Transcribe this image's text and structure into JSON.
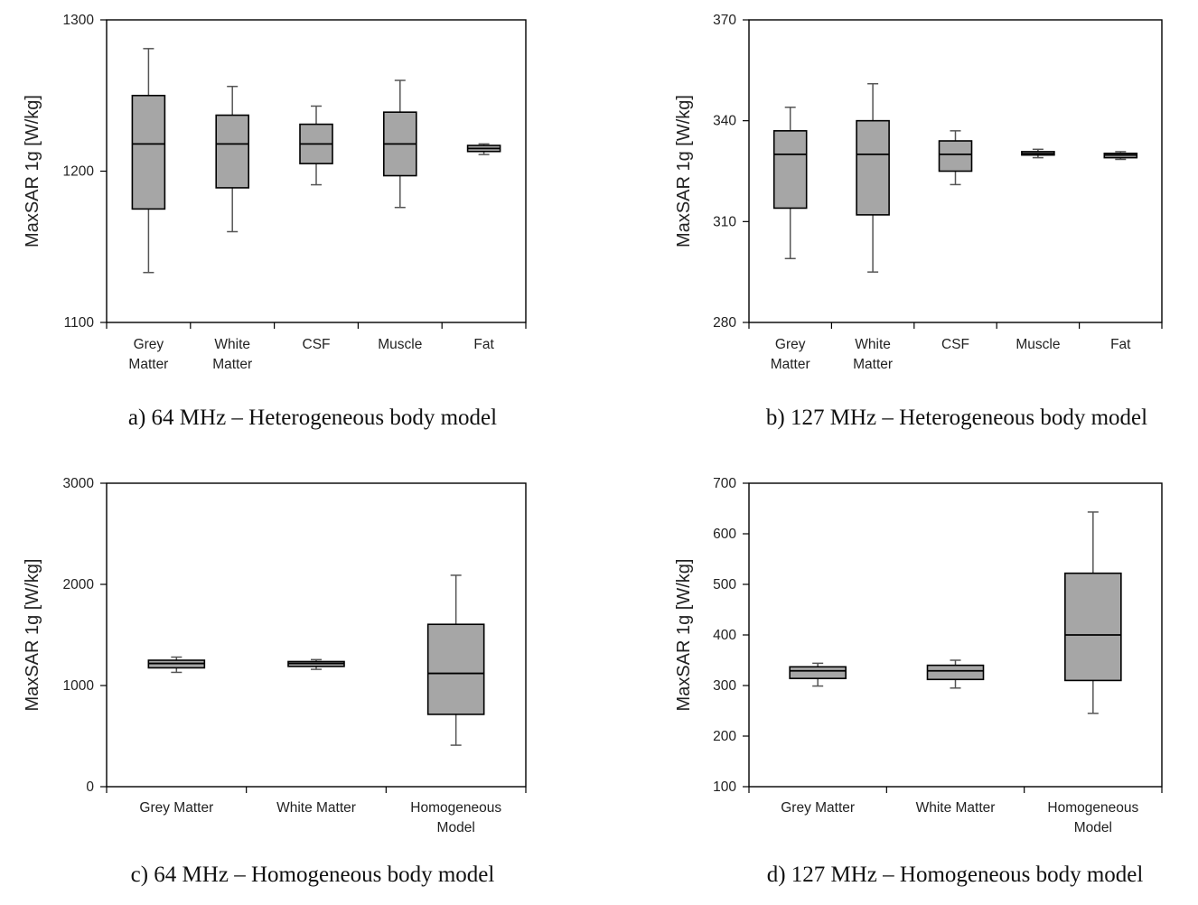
{
  "chart_data": [
    {
      "type": "box",
      "caption": "a) 64 MHz – Heterogeneous body model",
      "ylabel": "MaxSAR 1g [W/kg]",
      "ylim": [
        1100,
        1300
      ],
      "yticks": [
        "1100",
        "1200",
        "1300"
      ],
      "categories": [
        [
          "Grey",
          "Matter"
        ],
        [
          "White",
          "Matter"
        ],
        [
          "CSF"
        ],
        [
          "Muscle"
        ],
        [
          "Fat"
        ]
      ],
      "boxes": [
        {
          "min": 1133,
          "q1": 1175,
          "median": 1218,
          "q3": 1250,
          "max": 1281
        },
        {
          "min": 1160,
          "q1": 1189,
          "median": 1218,
          "q3": 1237,
          "max": 1256
        },
        {
          "min": 1191,
          "q1": 1205,
          "median": 1218,
          "q3": 1231,
          "max": 1243
        },
        {
          "min": 1176,
          "q1": 1197,
          "median": 1218,
          "q3": 1239,
          "max": 1260
        },
        {
          "min": 1211,
          "q1": 1213,
          "median": 1215,
          "q3": 1217,
          "max": 1218
        }
      ]
    },
    {
      "type": "box",
      "caption": "b) 127 MHz – Heterogeneous body model",
      "ylabel": "MaxSAR 1g [W/kg]",
      "ylim": [
        280,
        370
      ],
      "yticks": [
        "280",
        "310",
        "340",
        "370"
      ],
      "categories": [
        [
          "Grey",
          "Matter"
        ],
        [
          "White",
          "Matter"
        ],
        [
          "CSF"
        ],
        [
          "Muscle"
        ],
        [
          "Fat"
        ]
      ],
      "boxes": [
        {
          "min": 299,
          "q1": 314,
          "median": 330,
          "q3": 337,
          "max": 344
        },
        {
          "min": 295,
          "q1": 312,
          "median": 330,
          "q3": 340,
          "max": 351
        },
        {
          "min": 321,
          "q1": 325,
          "median": 330,
          "q3": 334,
          "max": 337
        },
        {
          "min": 329,
          "q1": 329.8,
          "median": 330.2,
          "q3": 330.8,
          "max": 331.5
        },
        {
          "min": 328.5,
          "q1": 329,
          "median": 329.8,
          "q3": 330.3,
          "max": 330.8
        }
      ]
    },
    {
      "type": "box",
      "caption": "c) 64 MHz – Homogeneous body model",
      "ylabel": "MaxSAR 1g [W/kg]",
      "ylim": [
        0,
        3000
      ],
      "yticks": [
        "0",
        "1000",
        "2000",
        "3000"
      ],
      "categories": [
        [
          "Grey Matter"
        ],
        [
          "White Matter"
        ],
        [
          "Homogeneous",
          "Model"
        ]
      ],
      "boxes": [
        {
          "min": 1130,
          "q1": 1175,
          "median": 1218,
          "q3": 1250,
          "max": 1281
        },
        {
          "min": 1160,
          "q1": 1189,
          "median": 1218,
          "q3": 1237,
          "max": 1256
        },
        {
          "min": 410,
          "q1": 715,
          "median": 1120,
          "q3": 1605,
          "max": 2090
        }
      ]
    },
    {
      "type": "box",
      "caption": "d) 127 MHz – Homogeneous body model",
      "ylabel": "MaxSAR 1g [W/kg]",
      "ylim": [
        100,
        700
      ],
      "yticks": [
        "100",
        "200",
        "300",
        "400",
        "500",
        "600",
        "700"
      ],
      "categories": [
        [
          "Grey Matter"
        ],
        [
          "White Matter"
        ],
        [
          "Homogeneous",
          "Model"
        ]
      ],
      "boxes": [
        {
          "min": 299,
          "q1": 314,
          "median": 329,
          "q3": 337,
          "max": 344
        },
        {
          "min": 295,
          "q1": 312,
          "median": 329,
          "q3": 340,
          "max": 350
        },
        {
          "min": 245,
          "q1": 310,
          "median": 400,
          "q3": 522,
          "max": 643
        }
      ]
    }
  ]
}
